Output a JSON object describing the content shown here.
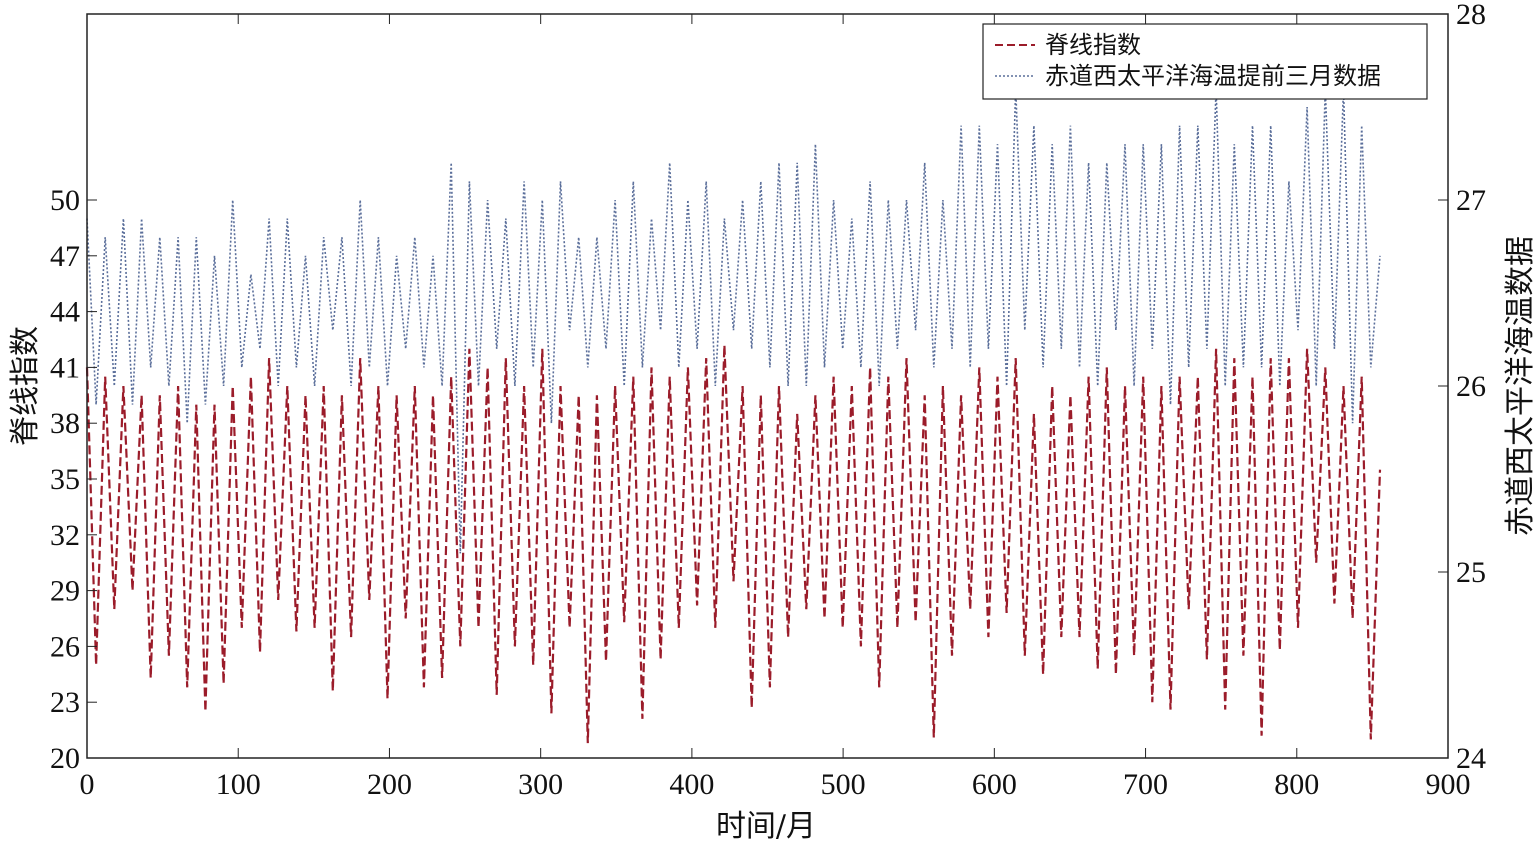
{
  "chart_data": {
    "type": "line",
    "xlabel": "时间/月",
    "ylabel_left": "脊线指数",
    "ylabel_right": "赤道西太平洋海温数据",
    "xlim": [
      0,
      900
    ],
    "ylim_left": [
      20,
      60
    ],
    "ylim_right": [
      24,
      28
    ],
    "xticks": [
      "0",
      "100",
      "200",
      "300",
      "400",
      "500",
      "600",
      "700",
      "800",
      "900"
    ],
    "yticks_left": [
      "20",
      "23",
      "26",
      "29",
      "32",
      "35",
      "38",
      "41",
      "44",
      "47",
      "50"
    ],
    "yticks_right": [
      "24",
      "25",
      "26",
      "27",
      "28"
    ],
    "grid": false,
    "legend_position": "top-right",
    "x_start": 0,
    "x_end": 855,
    "series": [
      {
        "name": "脊线指数",
        "axis": "left",
        "color": "#9b1c2a",
        "style": "dashed",
        "values": [
          41,
          25,
          40.5,
          28,
          40,
          29,
          39.5,
          24.3,
          39.5,
          25.5,
          40,
          23.8,
          39,
          22.5,
          39,
          24,
          40,
          27,
          40.5,
          25.7,
          41.5,
          28.5,
          40,
          26.8,
          39.5,
          27,
          40,
          23.6,
          39.5,
          26.5,
          41.5,
          28.5,
          40,
          23.2,
          39.5,
          27.5,
          40,
          23.8,
          39.5,
          24.3,
          40.5,
          26,
          42,
          27,
          41,
          23.4,
          41.5,
          26,
          40,
          25,
          42,
          22.4,
          40,
          27,
          39.5,
          20.8,
          39.5,
          25.2,
          40,
          27.3,
          40.5,
          22.1,
          41,
          25.3,
          40.5,
          27,
          41,
          28.2,
          41.5,
          27,
          42.2,
          29.5,
          40,
          22.7,
          39.5,
          23.8,
          40,
          26.5,
          38.5,
          28,
          39.5,
          27.5,
          40.5,
          27,
          40,
          26,
          41,
          23.8,
          40.5,
          27,
          41.5,
          27.3,
          39.5,
          21.1,
          40,
          25.5,
          39.5,
          28,
          41,
          26.5,
          40.5,
          27.8,
          41.5,
          25.5,
          38.5,
          24.5,
          40,
          26.5,
          39.5,
          26.5,
          40.5,
          24.8,
          41,
          24.5,
          40,
          25.5,
          40.5,
          23,
          40,
          22.6,
          40.5,
          28,
          40.5,
          25.3,
          42,
          22.6,
          41.5,
          25.5,
          40.5,
          21.2,
          41.5,
          25.8,
          41.5,
          27,
          42,
          30.5,
          41,
          28.3,
          40,
          27.5,
          40.5,
          21,
          35.5
        ]
      },
      {
        "name": "赤道西太平洋海温提前三月数据",
        "axis": "right",
        "color": "#5a6e9a",
        "style": "dotted",
        "values": [
          26.9,
          25.9,
          26.8,
          26.0,
          26.9,
          25.9,
          26.9,
          26.1,
          26.8,
          26.0,
          26.8,
          25.8,
          26.8,
          25.9,
          26.7,
          26.0,
          27.0,
          26.1,
          26.6,
          26.2,
          26.9,
          26.0,
          26.9,
          26.1,
          26.7,
          26.0,
          26.8,
          26.3,
          26.8,
          26.0,
          27.0,
          26.1,
          26.8,
          26.0,
          26.7,
          26.2,
          26.8,
          26.1,
          26.7,
          26.0,
          27.2,
          25.1,
          27.1,
          26.0,
          27.0,
          26.2,
          26.9,
          26.0,
          27.1,
          26.1,
          27.0,
          25.8,
          27.1,
          26.3,
          26.8,
          26.1,
          26.8,
          26.2,
          27.0,
          26.0,
          27.1,
          26.1,
          26.9,
          26.3,
          27.2,
          26.1,
          27.0,
          26.2,
          27.1,
          26.0,
          26.9,
          26.3,
          27.0,
          26.2,
          27.1,
          26.1,
          27.2,
          26.0,
          27.2,
          26.0,
          27.3,
          26.1,
          27.0,
          26.2,
          26.9,
          26.1,
          27.1,
          26.0,
          27.0,
          26.2,
          27.0,
          26.3,
          27.2,
          26.1,
          27.0,
          26.2,
          27.4,
          26.1,
          27.4,
          26.2,
          27.3,
          26.0,
          27.6,
          26.3,
          27.4,
          26.1,
          27.3,
          26.2,
          27.4,
          26.1,
          27.2,
          26.0,
          27.2,
          26.3,
          27.3,
          26.0,
          27.3,
          26.2,
          27.3,
          25.9,
          27.4,
          26.1,
          27.4,
          26.2,
          27.6,
          26.0,
          27.3,
          26.1,
          27.4,
          26.1,
          27.4,
          26.0,
          27.1,
          26.3,
          27.5,
          26.0,
          27.6,
          26.2,
          27.6,
          25.8,
          27.4,
          26.1,
          26.7
        ]
      }
    ]
  }
}
